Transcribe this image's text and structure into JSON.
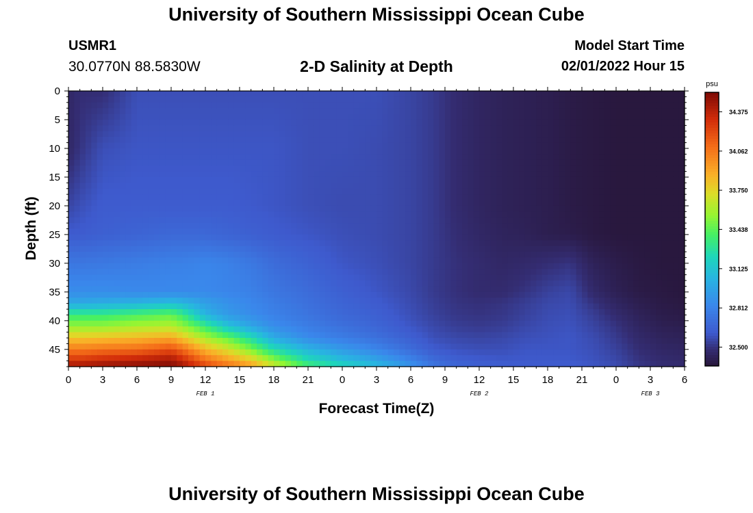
{
  "header": {
    "title": "University of Southern Mississippi Ocean Cube",
    "station_id": "USMR1",
    "coordinates": "30.0770N  88.5830W",
    "subtitle": "2-D Salinity at Depth",
    "model_start_label": "Model Start Time",
    "model_start_value": "02/01/2022 Hour 15"
  },
  "footer": {
    "title": "University of Southern Mississippi Ocean Cube"
  },
  "chart_data": {
    "type": "heatmap",
    "title": "2-D Salinity at Depth",
    "xlabel": "Forecast Time(Z)",
    "ylabel": "Depth (ft)",
    "x_ticks": [
      "0",
      "3",
      "6",
      "9",
      "12",
      "15",
      "18",
      "21",
      "0",
      "3",
      "6",
      "9",
      "12",
      "15",
      "18",
      "21",
      "0",
      "3",
      "6"
    ],
    "x_date_labels": [
      {
        "label": "FEB 1",
        "at_hour": 12
      },
      {
        "label": "FEB 2",
        "at_hour": 36
      },
      {
        "label": "FEB 3",
        "at_hour": 51
      }
    ],
    "x_range_hours": [
      0,
      54
    ],
    "y_ticks": [
      0,
      5,
      10,
      15,
      20,
      25,
      30,
      35,
      40,
      45
    ],
    "ylim": [
      0,
      48
    ],
    "y_inverted": true,
    "colorbar": {
      "unit": "psu",
      "ticks": [
        "34.375",
        "34.062",
        "33.750",
        "33.438",
        "33.125",
        "32.812",
        "32.500"
      ],
      "range": [
        32.35,
        34.53
      ]
    },
    "depths_ft": [
      0,
      10,
      20,
      25,
      30,
      35,
      37,
      39,
      41,
      43,
      45,
      47,
      48
    ],
    "hours": [
      0,
      1,
      3,
      6,
      9,
      10,
      12,
      14,
      16,
      18,
      21,
      24,
      27,
      30,
      32,
      34,
      36,
      38,
      40,
      42,
      44,
      46,
      48,
      50,
      52,
      54
    ],
    "salinity_psu": [
      [
        32.45,
        32.48,
        32.48,
        32.58,
        32.58,
        32.58,
        32.58,
        32.58,
        32.58,
        32.58,
        32.58,
        32.58,
        32.58,
        32.55,
        32.52,
        32.47,
        32.44,
        32.42,
        32.41,
        32.4,
        32.38,
        32.37,
        32.36,
        32.36,
        32.36,
        32.36
      ],
      [
        32.45,
        32.5,
        32.58,
        32.6,
        32.6,
        32.6,
        32.6,
        32.6,
        32.6,
        32.6,
        32.58,
        32.58,
        32.57,
        32.55,
        32.52,
        32.47,
        32.44,
        32.42,
        32.41,
        32.4,
        32.38,
        32.37,
        32.36,
        32.36,
        32.36,
        32.36
      ],
      [
        32.55,
        32.58,
        32.62,
        32.62,
        32.62,
        32.62,
        32.62,
        32.62,
        32.61,
        32.6,
        32.58,
        32.57,
        32.57,
        32.55,
        32.52,
        32.47,
        32.44,
        32.42,
        32.41,
        32.4,
        32.38,
        32.37,
        32.36,
        32.36,
        32.36,
        32.36
      ],
      [
        32.62,
        32.62,
        32.64,
        32.66,
        32.68,
        32.68,
        32.68,
        32.66,
        32.64,
        32.62,
        32.6,
        32.58,
        32.57,
        32.55,
        32.52,
        32.48,
        32.45,
        32.43,
        32.42,
        32.4,
        32.39,
        32.37,
        32.36,
        32.36,
        32.36,
        32.36
      ],
      [
        32.75,
        32.75,
        32.76,
        32.78,
        32.8,
        32.8,
        32.82,
        32.8,
        32.76,
        32.7,
        32.65,
        32.6,
        32.58,
        32.55,
        32.52,
        32.49,
        32.47,
        32.45,
        32.46,
        32.48,
        32.5,
        32.42,
        32.39,
        32.37,
        32.36,
        32.36
      ],
      [
        32.86,
        32.86,
        32.86,
        32.84,
        32.84,
        32.84,
        32.84,
        32.82,
        32.8,
        32.75,
        32.7,
        32.64,
        32.6,
        32.56,
        32.52,
        32.49,
        32.47,
        32.47,
        32.5,
        32.54,
        32.56,
        32.46,
        32.41,
        32.38,
        32.37,
        32.36
      ],
      [
        33.0,
        33.0,
        33.02,
        33.05,
        33.1,
        33.06,
        32.95,
        32.88,
        32.83,
        32.78,
        32.72,
        32.66,
        32.62,
        32.57,
        32.53,
        32.5,
        32.49,
        32.5,
        32.53,
        32.56,
        32.57,
        32.5,
        32.44,
        32.4,
        32.38,
        32.37
      ],
      [
        33.35,
        33.35,
        33.35,
        33.4,
        33.45,
        33.35,
        33.05,
        32.92,
        32.86,
        32.8,
        32.74,
        32.68,
        32.64,
        32.58,
        32.54,
        32.51,
        32.5,
        32.51,
        32.54,
        32.57,
        32.58,
        32.53,
        32.47,
        32.42,
        32.39,
        32.38
      ],
      [
        33.55,
        33.55,
        33.55,
        33.6,
        33.62,
        33.55,
        33.35,
        33.12,
        32.98,
        32.86,
        32.78,
        32.72,
        32.67,
        32.6,
        32.56,
        32.53,
        32.52,
        32.53,
        32.56,
        32.58,
        32.59,
        32.55,
        32.5,
        32.44,
        32.41,
        32.4
      ],
      [
        33.8,
        33.8,
        33.82,
        33.85,
        33.9,
        33.8,
        33.6,
        33.45,
        33.25,
        33.0,
        32.85,
        32.78,
        32.72,
        32.64,
        32.58,
        32.56,
        32.55,
        32.56,
        32.58,
        32.59,
        32.6,
        32.57,
        32.52,
        32.46,
        32.43,
        32.42
      ],
      [
        34.05,
        34.05,
        34.08,
        34.1,
        34.2,
        34.1,
        33.85,
        33.7,
        33.5,
        33.25,
        33.05,
        32.92,
        32.82,
        32.7,
        32.62,
        32.59,
        32.58,
        32.58,
        32.6,
        32.6,
        32.6,
        32.58,
        32.54,
        32.48,
        32.45,
        32.44
      ],
      [
        34.3,
        34.3,
        34.35,
        34.4,
        34.45,
        34.35,
        34.1,
        33.95,
        33.8,
        33.55,
        33.25,
        33.1,
        32.98,
        32.82,
        32.7,
        32.64,
        32.62,
        32.61,
        32.61,
        32.61,
        32.61,
        32.59,
        32.56,
        32.5,
        32.47,
        32.46
      ],
      [
        34.45,
        34.45,
        34.48,
        34.5,
        34.52,
        34.45,
        34.25,
        34.1,
        33.95,
        33.7,
        33.4,
        33.25,
        33.1,
        32.9,
        32.75,
        32.67,
        32.64,
        32.63,
        32.62,
        32.62,
        32.62,
        32.6,
        32.57,
        32.51,
        32.48,
        32.47
      ]
    ]
  }
}
